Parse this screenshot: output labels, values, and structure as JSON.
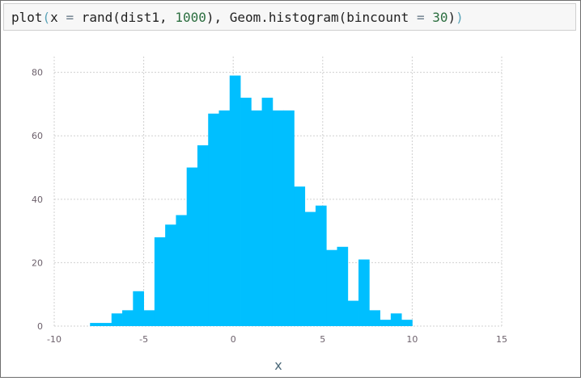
{
  "code_cell": {
    "tokens": [
      {
        "text": "plot",
        "style": "plain"
      },
      {
        "text": "(",
        "style": "paren"
      },
      {
        "text": "x",
        "style": "plain"
      },
      {
        "text": " = ",
        "style": "eq"
      },
      {
        "text": "rand(dist1, ",
        "style": "plain"
      },
      {
        "text": "1000",
        "style": "num"
      },
      {
        "text": "), Geom.histogram(bincount ",
        "style": "plain"
      },
      {
        "text": "=",
        "style": "eq"
      },
      {
        "text": " ",
        "style": "plain"
      },
      {
        "text": "30",
        "style": "num"
      },
      {
        "text": ")",
        "style": "plain"
      },
      {
        "text": ")",
        "style": "paren"
      }
    ]
  },
  "chart_data": {
    "type": "bar",
    "subtype": "histogram",
    "title": "",
    "xlabel": "x",
    "ylabel": "",
    "xlim": [
      -10,
      15
    ],
    "ylim": [
      0,
      85
    ],
    "grid": true,
    "xticks": [
      -10,
      -5,
      0,
      5,
      10,
      15
    ],
    "yticks": [
      0,
      20,
      40,
      60,
      80
    ],
    "xtick_labels": [
      "-10",
      "-5",
      "0",
      "5",
      "10",
      "15"
    ],
    "ytick_labels": [
      "0",
      "20",
      "40",
      "60",
      "80"
    ],
    "bar_color": "#00bfff",
    "bin_width": 0.6,
    "bin_starts": [
      -8.0,
      -7.4,
      -6.8,
      -6.2,
      -5.6,
      -5.0,
      -4.4,
      -3.8,
      -3.2,
      -2.6,
      -2.0,
      -1.4,
      -0.8,
      -0.2,
      0.4,
      1.0,
      1.6,
      2.2,
      2.8,
      3.4,
      4.0,
      4.6,
      5.2,
      5.8,
      6.4,
      7.0,
      7.6,
      8.2,
      8.8,
      9.4
    ],
    "values": [
      1,
      1,
      4,
      5,
      11,
      5,
      28,
      32,
      35,
      50,
      57,
      67,
      68,
      79,
      72,
      68,
      72,
      68,
      68,
      44,
      36,
      38,
      24,
      25,
      8,
      21,
      5,
      2,
      4,
      2
    ]
  }
}
